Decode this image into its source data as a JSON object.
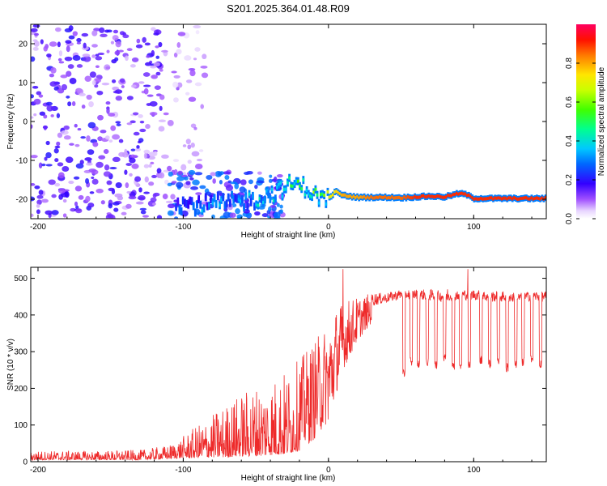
{
  "figure": {
    "title": "S201.2025.364.01.48.R09"
  },
  "chart_data": [
    {
      "type": "heatmap",
      "xlabel": "Height of straight line (km)",
      "ylabel": "Frequency (Hz)",
      "xlim": [
        -205,
        150
      ],
      "ylim": [
        -25,
        25
      ],
      "x_ticks": [
        -200,
        -100,
        0,
        100
      ],
      "y_ticks": [
        -20,
        -10,
        0,
        10,
        20
      ],
      "colorbar": {
        "label": "Normalized spectral amplitude",
        "range": [
          0,
          1
        ],
        "ticks": [
          "0.0",
          "0.2",
          "0.4",
          "0.6",
          "0.8"
        ],
        "colormap": [
          "#ffffff",
          "#c9a8f2",
          "#7a00ff",
          "#0033ff",
          "#00c8ff",
          "#00ff80",
          "#9cff00",
          "#ffe600",
          "#ff7a00",
          "#ff0000",
          "#ff0060"
        ]
      },
      "ridge_line": {
        "x": [
          -105,
          -90,
          -70,
          -50,
          -35,
          -25,
          -15,
          -10,
          -5,
          0,
          5,
          10,
          20,
          30,
          40,
          50,
          60,
          70,
          80,
          90,
          95,
          100,
          110,
          120,
          130,
          140,
          150
        ],
        "frequency": [
          -21,
          -21.5,
          -21,
          -20,
          -18,
          -16,
          -17,
          -19,
          -19.5,
          -19.8,
          -18,
          -19,
          -19.5,
          -19.5,
          -19.5,
          -19.6,
          -19.4,
          -19.2,
          -19.4,
          -18.5,
          -18.8,
          -19.8,
          -19.8,
          -19.8,
          -19.8,
          -19.8,
          -19.8
        ],
        "amplitude": [
          0.3,
          0.35,
          0.35,
          0.4,
          0.45,
          0.5,
          0.55,
          0.6,
          0.65,
          0.7,
          0.75,
          0.8,
          0.8,
          0.85,
          0.85,
          0.85,
          0.9,
          0.9,
          0.9,
          0.9,
          0.9,
          0.9,
          0.9,
          0.9,
          0.9,
          0.9,
          0.9
        ]
      },
      "noise_regions": [
        {
          "x_range": [
            -205,
            -115
          ],
          "frequency_range": [
            -25,
            25
          ],
          "level": 0.15
        },
        {
          "x_range": [
            -115,
            -85
          ],
          "frequency_range": [
            -25,
            25
          ],
          "level": 0.08
        },
        {
          "x_range": [
            -110,
            -30
          ],
          "frequency_range": [
            -25,
            -13
          ],
          "level": 0.25
        }
      ],
      "grid": false
    },
    {
      "type": "line",
      "xlabel": "Height of straight line (km)",
      "ylabel": "SNR (10 * v/v)",
      "xlim": [
        -205,
        150
      ],
      "ylim": [
        0,
        530
      ],
      "x_ticks": [
        -200,
        -100,
        0,
        100
      ],
      "y_ticks": [
        0,
        100,
        200,
        300,
        400,
        500
      ],
      "series": [
        {
          "color": "#ee2a2a",
          "envelope": {
            "x": [
              -205,
              -160,
              -130,
              -110,
              -100,
              -90,
              -80,
              -70,
              -60,
              -50,
              -40,
              -30,
              -20,
              -10,
              0,
              5,
              10,
              20,
              30,
              40,
              50,
              60,
              70,
              80,
              90,
              100,
              110,
              120,
              130,
              140,
              150
            ],
            "y_low": [
              5,
              5,
              5,
              8,
              10,
              10,
              12,
              12,
              15,
              15,
              18,
              20,
              30,
              60,
              110,
              180,
              250,
              330,
              380,
              400,
              410,
              410,
              400,
              400,
              405,
              405,
              400,
              400,
              400,
              405,
              400
            ],
            "y_high": [
              30,
              30,
              32,
              45,
              70,
              100,
              130,
              160,
              190,
              210,
              230,
              250,
              280,
              330,
              380,
              420,
              440,
              450,
              460,
              460,
              470,
              470,
              470,
              465,
              470,
              470,
              465,
              465,
              460,
              465,
              465
            ]
          },
          "dropouts": {
            "x": [
              52,
              57,
              62,
              68,
              74,
              80,
              86,
              91,
              97,
              105,
              111,
              117,
              123,
              129,
              134,
              140,
              146
            ],
            "y": [
              230,
              260,
              255,
              260,
              250,
              270,
              250,
              245,
              255,
              265,
              255,
              260,
              245,
              255,
              260,
              270,
              255
            ]
          },
          "spikes": {
            "x": [
              10,
              96,
              82
            ],
            "y": [
              525,
              525,
              470
            ]
          }
        }
      ],
      "grid": false
    }
  ]
}
